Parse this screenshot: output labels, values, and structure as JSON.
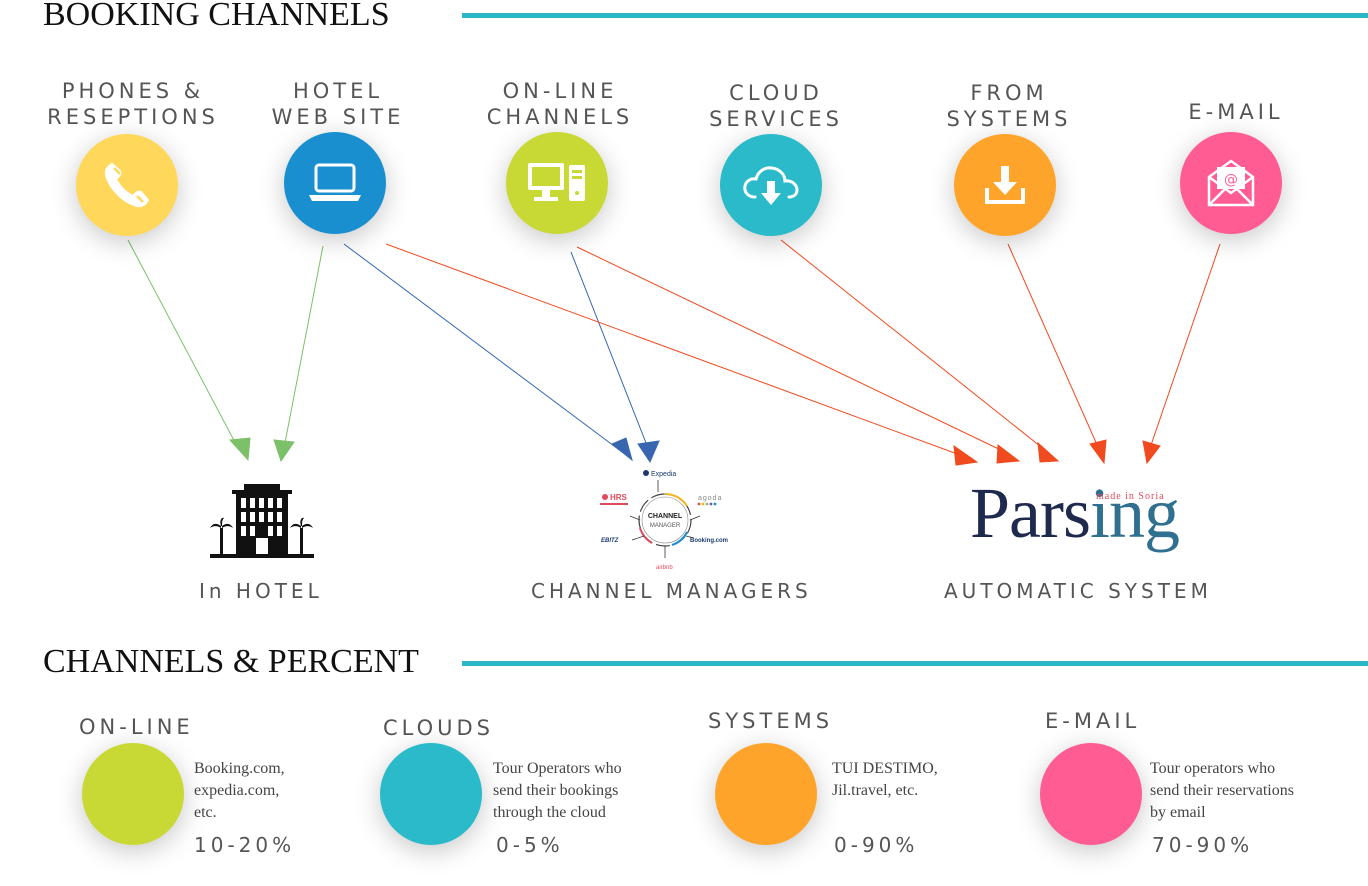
{
  "sections": {
    "booking_title": "BOOKING CHANNELS",
    "percent_title": "CHANNELS & PERCENT"
  },
  "channels": [
    {
      "line1": "PHONES &",
      "line2": "RESEPTIONS",
      "icon": "phone-icon",
      "color": "#ffd75a"
    },
    {
      "line1": "HOTEL",
      "line2": "WEB SITE",
      "icon": "laptop-icon",
      "color": "#1a8fd0"
    },
    {
      "line1": "ON-LINE",
      "line2": "CHANNELS",
      "icon": "desktop-icon",
      "color": "#c8d936"
    },
    {
      "line1": "CLOUD",
      "line2": "SERVICES",
      "icon": "cloud-download-icon",
      "color": "#2bbac9"
    },
    {
      "line1": "FROM",
      "line2": "SYSTEMS",
      "icon": "download-icon",
      "color": "#ffa42a"
    },
    {
      "line1": "E-MAIL",
      "line2": "",
      "icon": "envelope-icon",
      "color": "#ff5c93"
    }
  ],
  "destinations": {
    "hotel": "In HOTEL",
    "channel_managers": "CHANNEL MANAGERS",
    "automatic": "AUTOMATIC SYSTEM"
  },
  "channel_manager_logo": {
    "center_top": "CHANNEL",
    "center_bottom": "MANAGER",
    "expedia": "Expedia",
    "agoda": "agoda",
    "hrs": "HRS",
    "booking": "Booking.com",
    "ebitz": "EBITZ",
    "airbnb": "airbnb"
  },
  "parsing_logo": {
    "word_main": "Pars",
    "word_accent": "ing",
    "tagline": "made in Soria"
  },
  "percent": [
    {
      "label": "ON-LINE",
      "desc": "Booking.com,\nexpedia.com,\netc.",
      "pct": "10-20%",
      "color": "#c8d936"
    },
    {
      "label": "CLOUDS",
      "desc": "Tour Operators who\nsend their bookings\nthrough the cloud",
      "pct": "0-5%",
      "color": "#2bbac9"
    },
    {
      "label": "SYSTEMS",
      "desc": "TUI DESTIMO,\nJil.travel, etc.",
      "pct": "0-90%",
      "color": "#ffa42a"
    },
    {
      "label": "E-MAIL",
      "desc": "Tour operators who\nsend their reservations\nby email",
      "pct": "70-90%",
      "color": "#ff5c93"
    }
  ],
  "arrow_colors": {
    "hotel": "#7cc06a",
    "channel_managers": "#3866b0",
    "automatic": "#f04a1e"
  }
}
